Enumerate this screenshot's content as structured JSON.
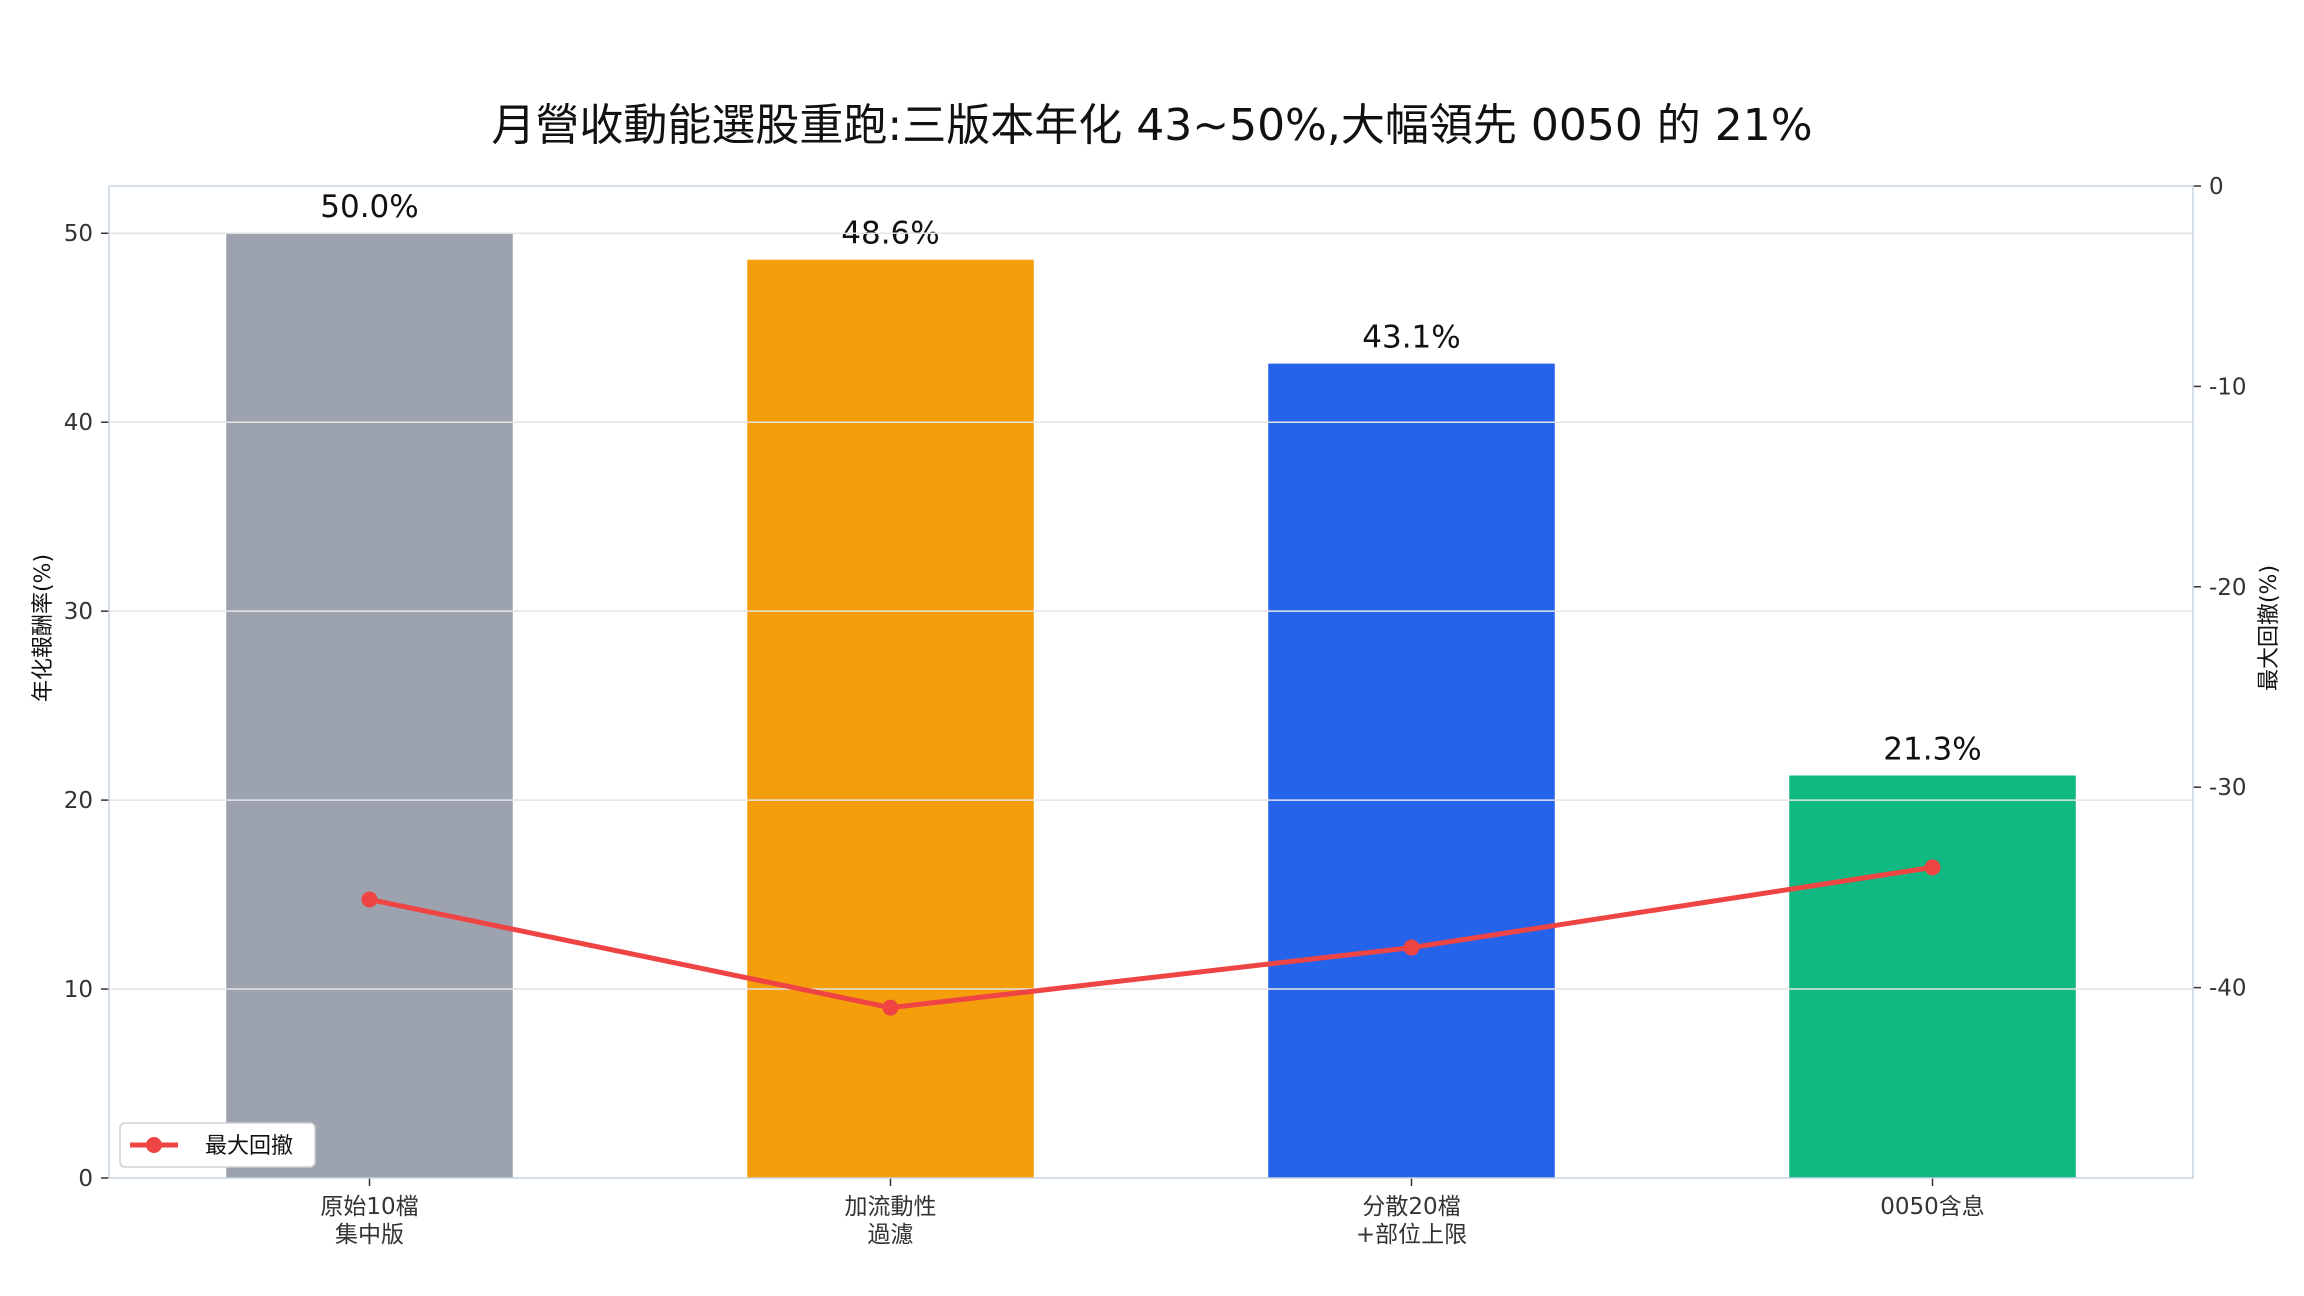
{
  "chart_data": {
    "type": "bar",
    "title": "月營收動能選股重跑:三版本年化 43~50%,大幅領先 0050 的 21%",
    "categories": [
      [
        "原始10檔",
        "集中版"
      ],
      [
        "加流動性",
        "過濾"
      ],
      [
        "分散20檔",
        "+部位上限"
      ],
      [
        "0050含息"
      ]
    ],
    "bar_series": {
      "values": [
        50.0,
        48.6,
        43.1,
        21.3
      ],
      "labels": [
        "50.0%",
        "48.6%",
        "43.1%",
        "21.3%"
      ],
      "colors": [
        "#9ca3af",
        "#f59e0b",
        "#2563eb",
        "#10b981"
      ]
    },
    "line_series": {
      "name": "最大回撤",
      "values": [
        -35.6,
        -41.0,
        -38.0,
        -34.0
      ],
      "color": "#ef4444"
    },
    "ylabel": "年化報酬率(%)",
    "ylim": [
      0,
      52.5
    ],
    "yticks": [
      0,
      10,
      20,
      30,
      40,
      50
    ],
    "y2label": "最大回撤(%)",
    "y2lim": [
      -49.5,
      0
    ],
    "y2ticks": [
      0,
      -10,
      -20,
      -30,
      -40
    ],
    "grid": true,
    "legend_position": "bottom-left"
  }
}
